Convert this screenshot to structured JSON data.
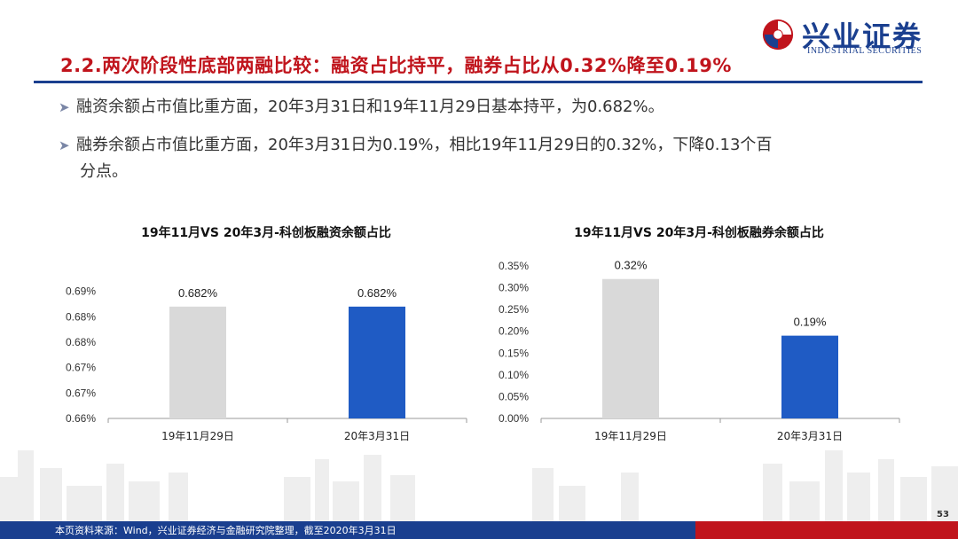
{
  "brand": {
    "name_cn": "兴业证券",
    "name_en": "INDUSTRIAL SECURITIES",
    "colors": {
      "primary_blue": "#1a3f8f",
      "red": "#c0141c"
    }
  },
  "page_title": "2.2.两次阶段性底部两融比较：融资占比持平，融券占比从0.32%降至0.19%",
  "bullets": [
    {
      "text": "融资余额占市值比重方面，20年3月31日和19年11月29日基本持平，为0.682%。",
      "line2": ""
    },
    {
      "text": "融券余额占市值比重方面，20年3月31日为0.19%，相比19年11月29日的0.32%，下降0.13个百",
      "line2": "分点。"
    }
  ],
  "chart_data": [
    {
      "type": "bar",
      "title": "19年11月VS 20年3月-科创板融资余额占比",
      "categories": [
        "19年11月29日",
        "20年3月31日"
      ],
      "values": [
        0.682,
        0.682
      ],
      "value_labels": [
        "0.682%",
        "0.682%"
      ],
      "bar_colors": [
        "#d9d9d9",
        "#1f5bc4"
      ],
      "ylim": [
        0.66,
        0.69
      ],
      "yticks": [
        0.66,
        0.665,
        0.67,
        0.675,
        0.68,
        0.685
      ],
      "ytick_labels": [
        "0.66%",
        "0.67%",
        "0.67%",
        "0.68%",
        "0.68%",
        "0.69%"
      ],
      "xlabel": "",
      "ylabel": "",
      "grid": false
    },
    {
      "type": "bar",
      "title": "19年11月VS 20年3月-科创板融券余额占比",
      "categories": [
        "19年11月29日",
        "20年3月31日"
      ],
      "values": [
        0.32,
        0.19
      ],
      "value_labels": [
        "0.32%",
        "0.19%"
      ],
      "bar_colors": [
        "#d9d9d9",
        "#1f5bc4"
      ],
      "ylim": [
        0,
        0.35
      ],
      "yticks": [
        0,
        0.05,
        0.1,
        0.15,
        0.2,
        0.25,
        0.3,
        0.35
      ],
      "ytick_labels": [
        "0.00%",
        "0.05%",
        "0.10%",
        "0.15%",
        "0.20%",
        "0.25%",
        "0.30%",
        "0.35%"
      ],
      "xlabel": "",
      "ylabel": "",
      "grid": false
    }
  ],
  "footer": {
    "source": "本页资料来源：Wind，兴业证券经济与金融研究院整理，截至2020年3月31日",
    "page_number": "53"
  }
}
